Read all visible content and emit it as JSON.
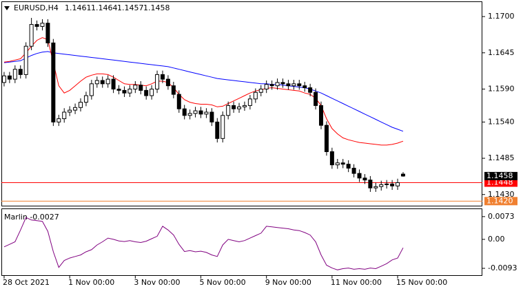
{
  "chart_data": [
    {
      "type": "candlestick",
      "title": "EURUSD,H4",
      "open": [
        1.16,
        1.161,
        1.1605,
        1.162,
        1.1612,
        1.1655,
        1.1688,
        1.1685,
        1.169,
        1.166,
        1.154,
        1.1545,
        1.1555,
        1.1558,
        1.1562,
        1.157,
        1.158,
        1.1598,
        1.1603,
        1.1598,
        1.1605,
        1.159,
        1.1588,
        1.1584,
        1.159,
        1.1596,
        1.1588,
        1.158,
        1.159,
        1.1612,
        1.1605,
        1.1595,
        1.1582,
        1.156,
        1.155,
        1.1553,
        1.1557,
        1.1552,
        1.1555,
        1.154,
        1.1515,
        1.155,
        1.1565,
        1.156,
        1.1563,
        1.1565,
        1.1575,
        1.1585,
        1.159,
        1.1597,
        1.1595,
        1.16,
        1.1598,
        1.1595,
        1.1598,
        1.1595,
        1.1592,
        1.1585,
        1.1565,
        1.1535,
        1.1495,
        1.1475,
        1.1478,
        1.1476,
        1.147,
        1.1462,
        1.1455,
        1.1452,
        1.144,
        1.1442,
        1.1445,
        1.1446,
        1.1443,
        1.1461
      ],
      "high": [
        1.1616,
        1.1616,
        1.1626,
        1.1626,
        1.1661,
        1.1698,
        1.1694,
        1.1696,
        1.1696,
        1.1666,
        1.1551,
        1.1561,
        1.1564,
        1.1568,
        1.1576,
        1.1586,
        1.1604,
        1.1609,
        1.1609,
        1.1611,
        1.1611,
        1.1596,
        1.1594,
        1.1596,
        1.1602,
        1.1602,
        1.1594,
        1.1596,
        1.1618,
        1.1618,
        1.1611,
        1.1601,
        1.1588,
        1.1566,
        1.1559,
        1.1563,
        1.1563,
        1.1561,
        1.1561,
        1.1546,
        1.1556,
        1.1571,
        1.1571,
        1.1569,
        1.1571,
        1.1581,
        1.1591,
        1.1596,
        1.1603,
        1.1603,
        1.1606,
        1.1606,
        1.1604,
        1.1604,
        1.1604,
        1.1601,
        1.1598,
        1.1591,
        1.1571,
        1.1541,
        1.1501,
        1.1484,
        1.1484,
        1.1482,
        1.1476,
        1.1468,
        1.1461,
        1.1458,
        1.1448,
        1.1451,
        1.1452,
        1.1452,
        1.1454,
        1.1464
      ],
      "low": [
        1.1594,
        1.1599,
        1.1599,
        1.1606,
        1.1606,
        1.1649,
        1.1679,
        1.1679,
        1.1654,
        1.1534,
        1.1534,
        1.1539,
        1.1549,
        1.1552,
        1.1556,
        1.1564,
        1.1574,
        1.1592,
        1.1592,
        1.1592,
        1.1584,
        1.1582,
        1.1578,
        1.1578,
        1.1584,
        1.1582,
        1.1574,
        1.1574,
        1.1584,
        1.1599,
        1.1589,
        1.1576,
        1.1554,
        1.1544,
        1.1544,
        1.1547,
        1.1546,
        1.1546,
        1.1534,
        1.1509,
        1.1509,
        1.1544,
        1.1554,
        1.1554,
        1.1557,
        1.1559,
        1.1569,
        1.1579,
        1.1584,
        1.1589,
        1.1589,
        1.1592,
        1.1589,
        1.1589,
        1.1589,
        1.1586,
        1.1579,
        1.1559,
        1.1529,
        1.1489,
        1.1469,
        1.1469,
        1.147,
        1.1464,
        1.1456,
        1.1449,
        1.1446,
        1.1434,
        1.1434,
        1.1436,
        1.1439,
        1.1437,
        1.1437,
        1.1457
      ],
      "close": [
        1.161,
        1.1605,
        1.162,
        1.1612,
        1.1655,
        1.1688,
        1.1685,
        1.169,
        1.166,
        1.154,
        1.1545,
        1.1555,
        1.1558,
        1.1562,
        1.157,
        1.158,
        1.1598,
        1.1603,
        1.1598,
        1.1605,
        1.159,
        1.1588,
        1.1584,
        1.159,
        1.1596,
        1.1588,
        1.158,
        1.159,
        1.1612,
        1.1605,
        1.1595,
        1.1582,
        1.156,
        1.155,
        1.1553,
        1.1557,
        1.1552,
        1.1555,
        1.154,
        1.1515,
        1.155,
        1.1565,
        1.156,
        1.1563,
        1.1565,
        1.1575,
        1.1585,
        1.159,
        1.1597,
        1.1595,
        1.16,
        1.1598,
        1.1595,
        1.1598,
        1.1595,
        1.1592,
        1.1585,
        1.1565,
        1.1535,
        1.1495,
        1.1475,
        1.1478,
        1.1476,
        1.147,
        1.1462,
        1.1455,
        1.1452,
        1.144,
        1.1442,
        1.1445,
        1.1446,
        1.1443,
        1.1448,
        1.1458
      ],
      "series": [
        {
          "color": "#0000ff",
          "values": [
            1.163,
            1.1631,
            1.1632,
            1.1633,
            1.1637,
            1.1641,
            1.1644,
            1.1646,
            1.1647,
            1.1645,
            1.1644,
            1.1643,
            1.1642,
            1.1641,
            1.164,
            1.1639,
            1.1638,
            1.1637,
            1.1636,
            1.1635,
            1.1634,
            1.1633,
            1.1632,
            1.1631,
            1.163,
            1.1629,
            1.1628,
            1.1627,
            1.1626,
            1.1625,
            1.1624,
            1.1622,
            1.162,
            1.1618,
            1.1616,
            1.1614,
            1.1612,
            1.161,
            1.1608,
            1.1606,
            1.1605,
            1.1604,
            1.1603,
            1.1602,
            1.1601,
            1.16,
            1.1599,
            1.1598,
            1.1598,
            1.1597,
            1.1597,
            1.1596,
            1.1595,
            1.1594,
            1.1593,
            1.1592,
            1.159,
            1.1587,
            1.1584,
            1.158,
            1.1576,
            1.1572,
            1.1568,
            1.1564,
            1.156,
            1.1556,
            1.1552,
            1.1548,
            1.1544,
            1.154,
            1.1536,
            1.1532,
            1.1529,
            1.1526
          ]
        },
        {
          "color": "#ff0000",
          "values": [
            1.1631,
            1.1632,
            1.1634,
            1.1636,
            1.1645,
            1.1655,
            1.1664,
            1.1668,
            1.1665,
            1.163,
            1.1595,
            1.1584,
            1.1588,
            1.1595,
            1.1602,
            1.1608,
            1.1611,
            1.1613,
            1.1613,
            1.1612,
            1.1608,
            1.1603,
            1.1598,
            1.1597,
            1.1597,
            1.1596,
            1.1595,
            1.1598,
            1.1602,
            1.1602,
            1.16,
            1.1592,
            1.1582,
            1.1574,
            1.157,
            1.1568,
            1.1567,
            1.1567,
            1.1566,
            1.1563,
            1.1564,
            1.1568,
            1.1572,
            1.1576,
            1.158,
            1.1584,
            1.1587,
            1.1589,
            1.1591,
            1.1592,
            1.1591,
            1.159,
            1.1589,
            1.1588,
            1.1587,
            1.1584,
            1.1582,
            1.1576,
            1.1565,
            1.1545,
            1.153,
            1.1522,
            1.1516,
            1.1513,
            1.1511,
            1.1509,
            1.1508,
            1.1507,
            1.1506,
            1.1505,
            1.1505,
            1.1506,
            1.1508,
            1.1511
          ]
        }
      ],
      "xlim": [
        -0.5,
        87.5
      ],
      "xticks": [
        {
          "value": 0,
          "label": "28 Oct 2021"
        },
        {
          "value": 12,
          "label": "1 Nov 00:00"
        },
        {
          "value": 24,
          "label": "3 Nov 00:00"
        },
        {
          "value": 36,
          "label": "5 Nov 00:00"
        },
        {
          "value": 48,
          "label": "9 Nov 00:00"
        },
        {
          "value": 60,
          "label": "11 Nov 00:00"
        },
        {
          "value": 72,
          "label": "15 Nov 00:00"
        }
      ],
      "ylim": [
        1.1412,
        1.1722
      ],
      "yticks": [
        {
          "value": 1.17,
          "label": "1.1700"
        },
        1.1645,
        {
          "value": 1.159,
          "label": "1.1590"
        },
        {
          "value": 1.154,
          "label": "1.1540"
        },
        1.1485,
        {
          "value": 1.143,
          "label": "1.1430"
        }
      ],
      "price_lines": [
        {
          "value": 1.1448,
          "color": "#ff0000"
        },
        {
          "value": 1.142,
          "label": "1.1420",
          "color": "#f08030"
        }
      ]
    },
    {
      "type": "line",
      "title": "Marlin -0.0027",
      "series": [
        {
          "color": "#800080",
          "values": [
            -0.0024,
            -0.0016,
            -0.0008,
            0.003,
            0.007,
            0.0062,
            0.006,
            0.0058,
            0.0026,
            -0.004,
            -0.009,
            -0.0068,
            -0.006,
            -0.0055,
            -0.005,
            -0.004,
            -0.0033,
            -0.0018,
            -0.0008,
            0.0004,
            0.0,
            -0.0005,
            -0.0007,
            -0.0004,
            -0.0008,
            -0.001,
            -0.0006,
            0.0002,
            0.001,
            0.0042,
            0.003,
            0.0014,
            -0.0016,
            -0.0039,
            -0.0036,
            -0.004,
            -0.0038,
            -0.0042,
            -0.005,
            -0.0055,
            -0.0018,
            0.0,
            -0.0004,
            -0.0008,
            -0.0004,
            0.0004,
            0.0012,
            0.002,
            0.0042,
            0.004,
            0.0038,
            0.0036,
            0.0034,
            0.003,
            0.0028,
            0.0022,
            0.0014,
            -0.0008,
            -0.005,
            -0.0083,
            -0.0092,
            -0.0098,
            -0.0094,
            -0.0092,
            -0.0096,
            -0.0094,
            -0.0096,
            -0.0092,
            -0.0094,
            -0.0086,
            -0.0078,
            -0.0066,
            -0.006,
            -0.0027
          ]
        }
      ],
      "xlim": [
        -0.5,
        87.5
      ],
      "ylim": [
        -0.0115,
        0.0097
      ],
      "yticks": [
        0.0073,
        {
          "value": 0,
          "label": "0.00"
        },
        -0.0093
      ]
    }
  ]
}
